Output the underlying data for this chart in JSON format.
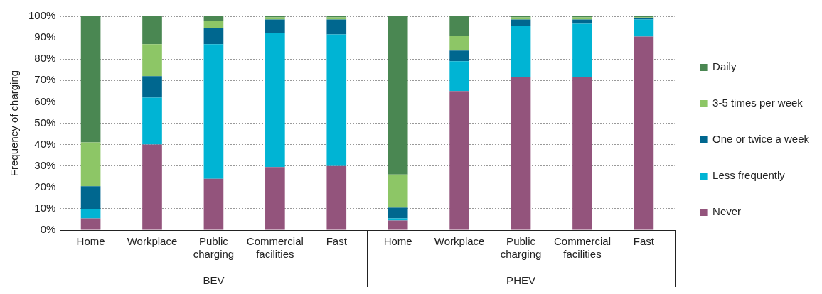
{
  "chart_data": {
    "type": "bar",
    "stacked": true,
    "ylabel": "Frequency of charging",
    "categories": [
      "Home",
      "Workplace",
      "Public charging",
      "Commercial facilities",
      "Fast",
      "Home",
      "Workplace",
      "Public charging",
      "Commercial facilities",
      "Fast"
    ],
    "series": [
      {
        "name": "Never",
        "color": "#93547c",
        "values": [
          5.5,
          40,
          24,
          29.5,
          30,
          4.5,
          65,
          71.5,
          71.5,
          90.5
        ]
      },
      {
        "name": "Less frequently",
        "color": "#00b4d4",
        "values": [
          4.3,
          22,
          63,
          62.5,
          61.5,
          1,
          14,
          24,
          25,
          8
        ]
      },
      {
        "name": "One or twice a week",
        "color": "#00678f",
        "values": [
          10.7,
          10,
          7.5,
          6.5,
          7,
          5,
          5,
          3,
          2,
          0.5
        ]
      },
      {
        "name": "3-5 times per week",
        "color": "#8dc666",
        "values": [
          20.5,
          15,
          3.5,
          1,
          1,
          15.5,
          7,
          1,
          1,
          0.5
        ]
      },
      {
        "name": "Daily",
        "color": "#4a8752",
        "values": [
          59,
          13,
          2,
          0.5,
          0.5,
          74,
          9,
          0.5,
          0.5,
          0.5
        ]
      }
    ],
    "ylim": [
      0,
      100
    ],
    "yticks": [
      {
        "value": 0,
        "label": "0%"
      },
      {
        "value": 10,
        "label": "10%"
      },
      {
        "value": 20,
        "label": "20%"
      },
      {
        "value": 30,
        "label": "30%"
      },
      {
        "value": 40,
        "label": "40%"
      },
      {
        "value": 50,
        "label": "50%"
      },
      {
        "value": 60,
        "label": "60%"
      },
      {
        "value": 70,
        "label": "70%"
      },
      {
        "value": 80,
        "label": "80%"
      },
      {
        "value": 90,
        "label": "90%"
      },
      {
        "value": 100,
        "label": "100%"
      }
    ],
    "grid": "y",
    "legend": "right",
    "annotations": [
      "BEV",
      "PHEV"
    ]
  }
}
